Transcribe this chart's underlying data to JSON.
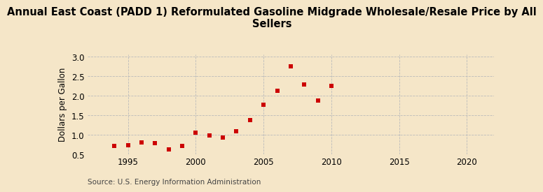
{
  "title": "Annual East Coast (PADD 1) Reformulated Gasoline Midgrade Wholesale/Resale Price by All\nSellers",
  "ylabel": "Dollars per Gallon",
  "source": "Source: U.S. Energy Information Administration",
  "years": [
    1994,
    1995,
    1996,
    1997,
    1998,
    1999,
    2000,
    2001,
    2002,
    2003,
    2004,
    2005,
    2006,
    2007,
    2008,
    2009,
    2010
  ],
  "values": [
    0.72,
    0.73,
    0.8,
    0.79,
    0.63,
    0.72,
    1.06,
    0.99,
    0.93,
    1.09,
    1.38,
    1.76,
    2.12,
    2.75,
    2.29,
    1.87,
    2.24
  ],
  "marker_color": "#cc0000",
  "background_color": "#f5e6c8",
  "plot_bg_color": "#f5e6c8",
  "grid_color": "#bbbbbb",
  "xlim": [
    1992,
    2022
  ],
  "ylim": [
    0.5,
    3.05
  ],
  "xticks": [
    1995,
    2000,
    2005,
    2010,
    2015,
    2020
  ],
  "yticks": [
    0.5,
    1.0,
    1.5,
    2.0,
    2.5,
    3.0
  ],
  "title_fontsize": 10.5,
  "tick_fontsize": 8.5,
  "ylabel_fontsize": 8.5,
  "source_fontsize": 7.5
}
